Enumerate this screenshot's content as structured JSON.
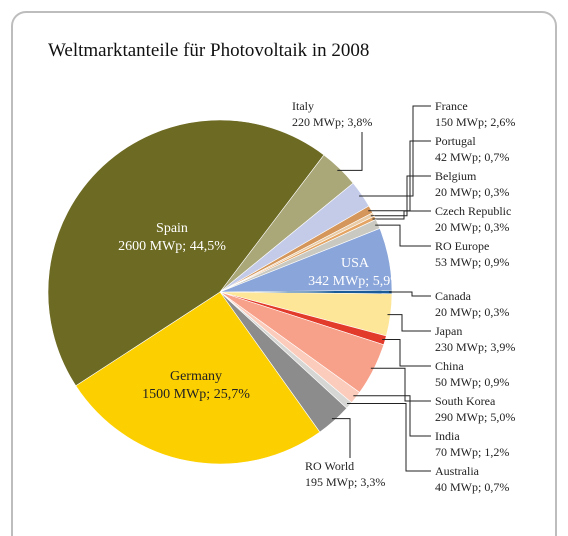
{
  "chart_data": {
    "type": "pie",
    "title": "Weltmarktanteile für Photovoltaik in 2008",
    "categories": [
      "Canada",
      "Japan",
      "China",
      "South Korea",
      "India",
      "Australia",
      "RO World",
      "Germany",
      "Spain",
      "Italy",
      "France",
      "Portugal",
      "Belgium",
      "Czech Republic",
      "RO Europe",
      "USA"
    ],
    "values": [
      20,
      230,
      50,
      290,
      70,
      40,
      195,
      1500,
      2600,
      220,
      150,
      42,
      20,
      20,
      53,
      342
    ],
    "value_labels": [
      "20 MWp; 0,3%",
      "230 MWp; 3,9%",
      "50 MWp; 0,9%",
      "290 MWp; 5,0%",
      "70 MWp; 1,2%",
      "40 MWp; 0,7%",
      "195 MWp; 3,3%",
      "1500 MWp; 25,7%",
      "2600 MWp; 44,5%",
      "220 MWp; 3,8%",
      "150 MWp; 2,6%",
      "42 MWp; 0,7%",
      "20 MWp; 0,3%",
      "20 MWp; 0,3%",
      "53 MWp; 0,9%",
      "342 MWp; 5,9%"
    ],
    "colors": [
      "#1b5c98",
      "#fde697",
      "#e23b2b",
      "#f7a08a",
      "#fbcbbb",
      "#d6d6d4",
      "#8c8c8c",
      "#fccf00",
      "#6d6a23",
      "#aaa779",
      "#c3cbe9",
      "#d4965a",
      "#e9cba5",
      "#e4a463",
      "#cac9c1",
      "#8aa5d9"
    ]
  }
}
